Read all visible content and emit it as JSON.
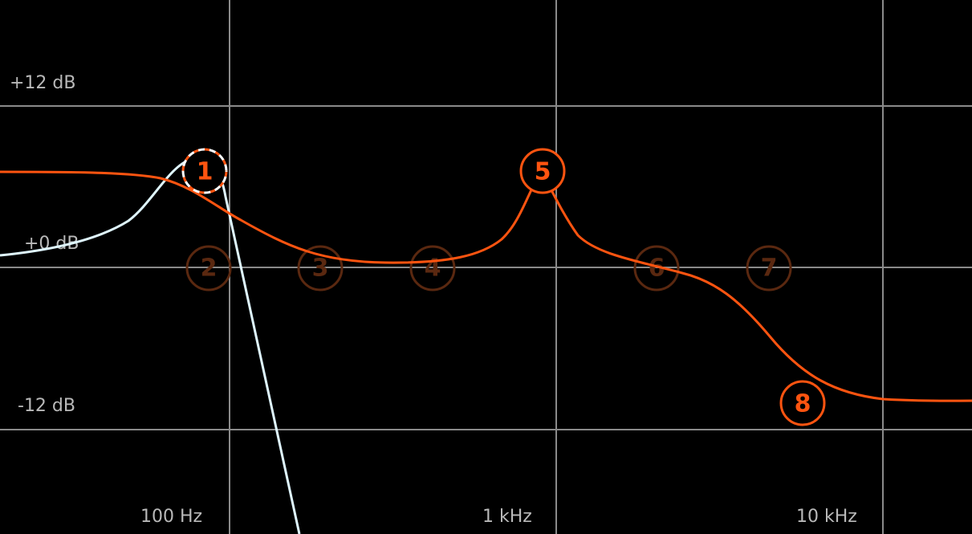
{
  "colors": {
    "background": "#000000",
    "grid": "#8a8a8a",
    "label": "#b9b9b9",
    "eq_curve": "#ff5410",
    "selected_band_curve": "#dff6ff",
    "band_active": "#ff5410",
    "band_inactive": "#5a2810",
    "selected_ring": "#ffffff"
  },
  "axis": {
    "gain_labels": [
      "+12 dB",
      "+0 dB",
      "-12 dB"
    ],
    "freq_labels": [
      "100 Hz",
      "1 kHz",
      "10 kHz"
    ],
    "x_scale": "log",
    "x_range_hz": [
      20,
      20000
    ],
    "y_range_db": [
      -20,
      20
    ]
  },
  "bands": [
    {
      "label": "1",
      "freq_hz": 92,
      "gain_db": 7,
      "state": "selected"
    },
    {
      "label": "2",
      "freq_hz": 92,
      "gain_db": 0,
      "state": "inactive"
    },
    {
      "label": "3",
      "freq_hz": 250,
      "gain_db": 0,
      "state": "inactive"
    },
    {
      "label": "4",
      "freq_hz": 550,
      "gain_db": 0,
      "state": "inactive"
    },
    {
      "label": "5",
      "freq_hz": 1450,
      "gain_db": 7,
      "state": "active"
    },
    {
      "label": "6",
      "freq_hz": 3300,
      "gain_db": 0,
      "state": "inactive"
    },
    {
      "label": "7",
      "freq_hz": 7300,
      "gain_db": 0,
      "state": "inactive"
    },
    {
      "label": "8",
      "freq_hz": 8700,
      "gain_db": -10,
      "state": "active"
    }
  ]
}
